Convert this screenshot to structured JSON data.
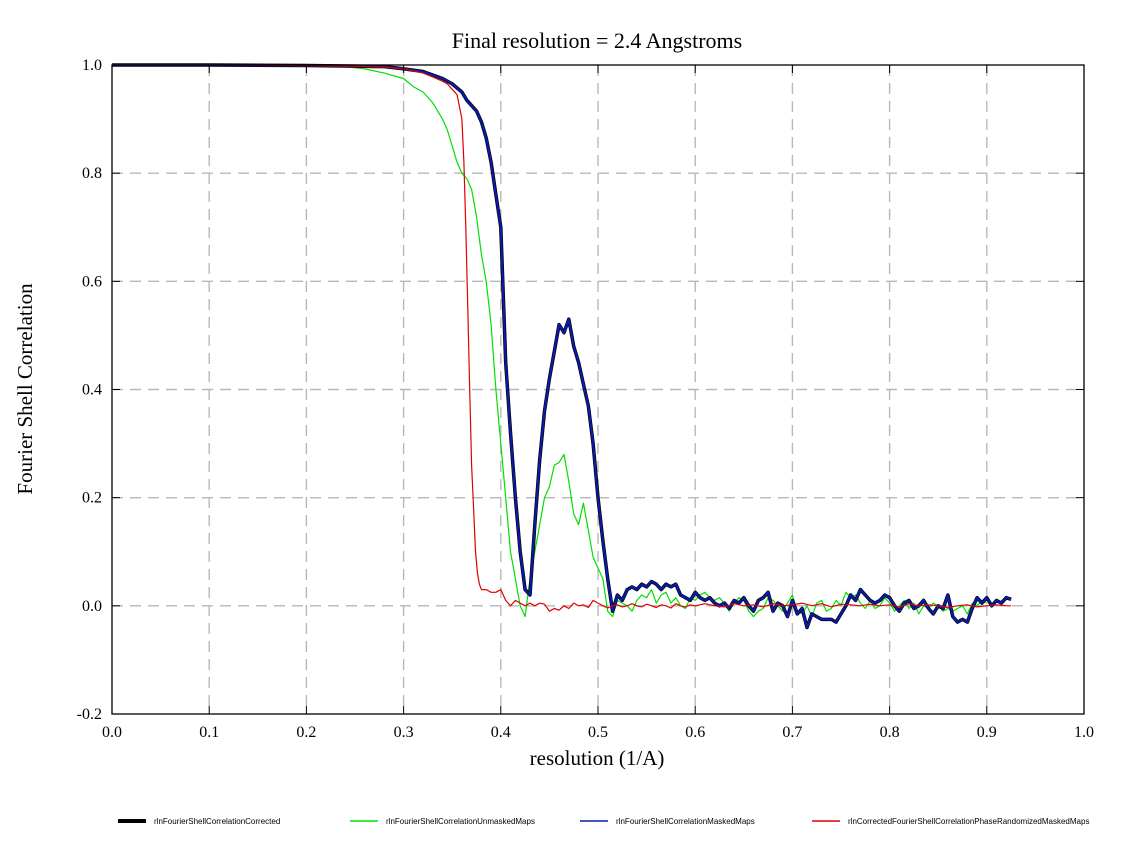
{
  "chart_data": {
    "type": "line",
    "title": "Final resolution =   2.4 Angstroms",
    "xlabel": "resolution (1/A)",
    "ylabel": "Fourier Shell Correlation",
    "xlim": [
      0.0,
      1.0
    ],
    "ylim": [
      -0.2,
      1.0
    ],
    "x_ticks": [
      "0.0",
      "0.1",
      "0.2",
      "0.3",
      "0.4",
      "0.5",
      "0.6",
      "0.7",
      "0.8",
      "0.9",
      "1.0"
    ],
    "y_ticks": [
      "-0.2",
      "0.0",
      "0.2",
      "0.4",
      "0.6",
      "0.8",
      "1.0"
    ],
    "grid": true,
    "legend_position": "bottom",
    "series": [
      {
        "name": "rlnFourierShellCorrelationCorrected",
        "color": "#000000",
        "x": [
          0.0,
          0.1,
          0.2,
          0.25,
          0.28,
          0.3,
          0.32,
          0.34,
          0.35,
          0.36,
          0.365,
          0.37,
          0.375,
          0.38,
          0.385,
          0.39,
          0.395,
          0.4,
          0.405,
          0.41,
          0.415,
          0.42,
          0.425,
          0.43,
          0.435,
          0.44,
          0.445,
          0.45,
          0.455,
          0.46,
          0.465,
          0.47,
          0.475,
          0.48,
          0.485,
          0.49,
          0.495,
          0.5,
          0.505,
          0.51,
          0.515,
          0.52,
          0.525,
          0.53,
          0.535,
          0.54,
          0.545,
          0.55,
          0.555,
          0.56,
          0.565,
          0.57,
          0.575,
          0.58,
          0.585,
          0.59,
          0.595,
          0.6,
          0.605,
          0.61,
          0.615,
          0.62,
          0.625,
          0.63,
          0.635,
          0.64,
          0.645,
          0.65,
          0.655,
          0.66,
          0.665,
          0.67,
          0.675,
          0.68,
          0.685,
          0.69,
          0.695,
          0.7,
          0.705,
          0.71,
          0.715,
          0.72,
          0.725,
          0.73,
          0.735,
          0.74,
          0.745,
          0.75,
          0.755,
          0.76,
          0.765,
          0.77,
          0.775,
          0.78,
          0.785,
          0.79,
          0.795,
          0.8,
          0.805,
          0.81,
          0.815,
          0.82,
          0.825,
          0.83,
          0.835,
          0.84,
          0.845,
          0.85,
          0.855,
          0.86,
          0.865,
          0.87,
          0.875,
          0.88,
          0.885,
          0.89,
          0.895,
          0.9,
          0.905,
          0.91,
          0.915,
          0.92,
          0.925
        ],
        "values": [
          1.0,
          1.0,
          0.999,
          0.998,
          0.997,
          0.993,
          0.988,
          0.975,
          0.965,
          0.95,
          0.935,
          0.925,
          0.915,
          0.895,
          0.865,
          0.82,
          0.76,
          0.7,
          0.45,
          0.32,
          0.2,
          0.1,
          0.03,
          0.02,
          0.15,
          0.27,
          0.36,
          0.42,
          0.47,
          0.52,
          0.505,
          0.53,
          0.48,
          0.45,
          0.41,
          0.37,
          0.3,
          0.2,
          0.12,
          0.05,
          -0.01,
          0.02,
          0.01,
          0.03,
          0.035,
          0.03,
          0.04,
          0.035,
          0.045,
          0.04,
          0.03,
          0.04,
          0.035,
          0.04,
          0.02,
          0.015,
          0.01,
          0.025,
          0.015,
          0.01,
          0.015,
          0.005,
          0.0,
          0.005,
          -0.005,
          0.01,
          0.005,
          0.015,
          0.0,
          -0.01,
          0.01,
          0.015,
          0.025,
          -0.01,
          0.005,
          0.0,
          -0.02,
          0.01,
          -0.015,
          -0.005,
          -0.04,
          -0.015,
          -0.02,
          -0.025,
          -0.025,
          -0.025,
          -0.03,
          -0.015,
          0.0,
          0.02,
          0.01,
          0.03,
          0.02,
          0.01,
          0.005,
          0.01,
          0.02,
          0.015,
          0.0,
          -0.01,
          0.005,
          0.01,
          -0.005,
          0.0,
          0.01,
          -0.005,
          -0.015,
          0.0,
          -0.005,
          0.02,
          -0.02,
          -0.03,
          -0.025,
          -0.03,
          -0.005,
          0.015,
          0.005,
          0.015,
          0.0,
          0.01,
          0.005,
          0.015,
          0.012
        ],
        "line_width": 3.5
      },
      {
        "name": "rlnFourierShellCorrelationUnmaskedMaps",
        "color": "#00e000",
        "x": [
          0.0,
          0.1,
          0.2,
          0.24,
          0.26,
          0.28,
          0.3,
          0.31,
          0.32,
          0.33,
          0.34,
          0.345,
          0.35,
          0.355,
          0.36,
          0.365,
          0.37,
          0.375,
          0.38,
          0.385,
          0.39,
          0.395,
          0.4,
          0.405,
          0.41,
          0.415,
          0.42,
          0.425,
          0.43,
          0.435,
          0.44,
          0.445,
          0.45,
          0.455,
          0.46,
          0.465,
          0.47,
          0.475,
          0.48,
          0.485,
          0.49,
          0.495,
          0.5,
          0.505,
          0.51,
          0.515,
          0.52,
          0.525,
          0.53,
          0.535,
          0.54,
          0.545,
          0.55,
          0.555,
          0.56,
          0.565,
          0.57,
          0.575,
          0.58,
          0.585,
          0.59,
          0.595,
          0.6,
          0.605,
          0.61,
          0.615,
          0.62,
          0.625,
          0.63,
          0.635,
          0.64,
          0.645,
          0.65,
          0.655,
          0.66,
          0.665,
          0.67,
          0.675,
          0.68,
          0.685,
          0.69,
          0.695,
          0.7,
          0.705,
          0.71,
          0.715,
          0.72,
          0.725,
          0.73,
          0.735,
          0.74,
          0.745,
          0.75,
          0.755,
          0.76,
          0.765,
          0.77,
          0.775,
          0.78,
          0.785,
          0.79,
          0.795,
          0.8,
          0.805,
          0.81,
          0.815,
          0.82,
          0.825,
          0.83,
          0.835,
          0.84,
          0.845,
          0.85,
          0.855,
          0.86,
          0.865,
          0.87,
          0.875,
          0.88,
          0.885,
          0.89,
          0.895,
          0.9
        ],
        "values": [
          1.0,
          1.0,
          0.999,
          0.997,
          0.993,
          0.985,
          0.975,
          0.96,
          0.95,
          0.93,
          0.9,
          0.88,
          0.85,
          0.82,
          0.8,
          0.79,
          0.77,
          0.72,
          0.65,
          0.6,
          0.52,
          0.4,
          0.3,
          0.2,
          0.1,
          0.05,
          0.0,
          -0.02,
          0.05,
          0.1,
          0.15,
          0.2,
          0.22,
          0.26,
          0.265,
          0.28,
          0.23,
          0.17,
          0.15,
          0.19,
          0.14,
          0.09,
          0.07,
          0.05,
          -0.01,
          -0.02,
          0.01,
          0.005,
          0.0,
          -0.01,
          0.01,
          0.02,
          0.015,
          0.03,
          0.005,
          0.02,
          0.025,
          0.005,
          0.015,
          0.0,
          -0.005,
          0.015,
          0.01,
          0.02,
          0.025,
          0.015,
          0.01,
          0.015,
          0.005,
          -0.01,
          0.005,
          0.015,
          0.01,
          -0.01,
          -0.02,
          -0.01,
          -0.005,
          0.015,
          0.01,
          0.0,
          -0.01,
          0.005,
          0.02,
          -0.01,
          -0.015,
          0.0,
          -0.02,
          0.005,
          0.01,
          -0.01,
          -0.005,
          0.01,
          0.0,
          0.025,
          0.015,
          0.02,
          0.005,
          -0.005,
          0.01,
          -0.005,
          0.0,
          0.015,
          0.005,
          -0.01,
          0.0,
          0.01,
          -0.005,
          0.005,
          -0.015,
          0.0,
          -0.005,
          0.005,
          0.0,
          -0.01,
          -0.005,
          -0.01,
          -0.005,
          0.0,
          -0.015,
          0.005,
          0.0,
          0.01,
          0.005
        ],
        "line_width": 1.2
      },
      {
        "name": "rlnFourierShellCorrelationMaskedMaps",
        "color": "#0a1aa8",
        "x": [
          0.0,
          0.1,
          0.2,
          0.25,
          0.28,
          0.3,
          0.32,
          0.34,
          0.35,
          0.36,
          0.365,
          0.37,
          0.375,
          0.38,
          0.385,
          0.39,
          0.395,
          0.4,
          0.405,
          0.41,
          0.415,
          0.42,
          0.425,
          0.43,
          0.435,
          0.44,
          0.445,
          0.45,
          0.455,
          0.46,
          0.465,
          0.47,
          0.475,
          0.48,
          0.485,
          0.49,
          0.495,
          0.5,
          0.505,
          0.51,
          0.515,
          0.52,
          0.525,
          0.53,
          0.535,
          0.54,
          0.545,
          0.55,
          0.555,
          0.56,
          0.565,
          0.57,
          0.575,
          0.58,
          0.585,
          0.59,
          0.595,
          0.6,
          0.605,
          0.61,
          0.615,
          0.62,
          0.625,
          0.63,
          0.635,
          0.64,
          0.645,
          0.65,
          0.655,
          0.66,
          0.665,
          0.67,
          0.675,
          0.68,
          0.685,
          0.69,
          0.695,
          0.7,
          0.705,
          0.71,
          0.715,
          0.72,
          0.725,
          0.73,
          0.735,
          0.74,
          0.745,
          0.75,
          0.755,
          0.76,
          0.765,
          0.77,
          0.775,
          0.78,
          0.785,
          0.79,
          0.795,
          0.8,
          0.805,
          0.81,
          0.815,
          0.82,
          0.825,
          0.83,
          0.835,
          0.84,
          0.845,
          0.85,
          0.855,
          0.86,
          0.865,
          0.87,
          0.875,
          0.88,
          0.885,
          0.89,
          0.895,
          0.9,
          0.905,
          0.91,
          0.915,
          0.92,
          0.925
        ],
        "values": [
          1.0,
          1.0,
          0.999,
          0.998,
          0.997,
          0.993,
          0.988,
          0.975,
          0.965,
          0.95,
          0.935,
          0.925,
          0.915,
          0.895,
          0.865,
          0.82,
          0.76,
          0.7,
          0.45,
          0.32,
          0.2,
          0.1,
          0.03,
          0.02,
          0.15,
          0.27,
          0.36,
          0.42,
          0.47,
          0.52,
          0.505,
          0.53,
          0.48,
          0.45,
          0.41,
          0.37,
          0.3,
          0.2,
          0.12,
          0.05,
          -0.01,
          0.02,
          0.01,
          0.03,
          0.035,
          0.03,
          0.04,
          0.035,
          0.045,
          0.04,
          0.03,
          0.04,
          0.035,
          0.04,
          0.02,
          0.015,
          0.01,
          0.025,
          0.015,
          0.01,
          0.015,
          0.005,
          0.0,
          0.005,
          -0.005,
          0.01,
          0.005,
          0.015,
          0.0,
          -0.01,
          0.01,
          0.015,
          0.025,
          -0.01,
          0.005,
          0.0,
          -0.02,
          0.01,
          -0.015,
          -0.005,
          -0.04,
          -0.015,
          -0.02,
          -0.025,
          -0.025,
          -0.025,
          -0.03,
          -0.015,
          0.0,
          0.02,
          0.01,
          0.03,
          0.02,
          0.01,
          0.005,
          0.01,
          0.02,
          0.015,
          0.0,
          -0.01,
          0.005,
          0.01,
          -0.005,
          0.0,
          0.01,
          -0.005,
          -0.015,
          0.0,
          -0.005,
          0.02,
          -0.02,
          -0.03,
          -0.025,
          -0.03,
          -0.005,
          0.015,
          0.005,
          0.015,
          0.0,
          0.01,
          0.005,
          0.015,
          0.012
        ],
        "line_width": 2.2
      },
      {
        "name": "rlnCorrectedFourierShellCorrelationPhaseRandomizedMaskedMaps",
        "color": "#e00000",
        "x": [
          0.0,
          0.1,
          0.2,
          0.25,
          0.28,
          0.3,
          0.32,
          0.33,
          0.34,
          0.345,
          0.35,
          0.355,
          0.36,
          0.362,
          0.364,
          0.366,
          0.368,
          0.37,
          0.372,
          0.374,
          0.376,
          0.378,
          0.38,
          0.385,
          0.39,
          0.395,
          0.4,
          0.405,
          0.41,
          0.415,
          0.42,
          0.425,
          0.43,
          0.435,
          0.44,
          0.445,
          0.45,
          0.455,
          0.46,
          0.465,
          0.47,
          0.475,
          0.48,
          0.485,
          0.49,
          0.495,
          0.5,
          0.505,
          0.51,
          0.515,
          0.52,
          0.525,
          0.53,
          0.535,
          0.54,
          0.545,
          0.55,
          0.555,
          0.56,
          0.565,
          0.57,
          0.575,
          0.58,
          0.585,
          0.59,
          0.595,
          0.6,
          0.61,
          0.62,
          0.63,
          0.64,
          0.65,
          0.66,
          0.67,
          0.68,
          0.69,
          0.7,
          0.71,
          0.72,
          0.73,
          0.74,
          0.75,
          0.76,
          0.77,
          0.78,
          0.79,
          0.8,
          0.81,
          0.82,
          0.83,
          0.84,
          0.85,
          0.86,
          0.87,
          0.88,
          0.89,
          0.9,
          0.91,
          0.92,
          0.925
        ],
        "values": [
          1.0,
          1.0,
          0.999,
          0.998,
          0.996,
          0.993,
          0.985,
          0.978,
          0.97,
          0.965,
          0.955,
          0.945,
          0.9,
          0.82,
          0.7,
          0.55,
          0.4,
          0.26,
          0.18,
          0.1,
          0.06,
          0.04,
          0.03,
          0.03,
          0.025,
          0.025,
          0.03,
          0.01,
          0.0,
          0.01,
          0.005,
          0.0,
          0.005,
          0.0,
          0.005,
          0.003,
          -0.01,
          -0.005,
          -0.008,
          0.0,
          -0.005,
          0.005,
          0.0,
          0.002,
          -0.003,
          0.01,
          0.005,
          0.0,
          -0.004,
          0.0,
          0.002,
          -0.002,
          0.0,
          0.004,
          0.0,
          -0.002,
          0.003,
          0.0,
          -0.003,
          0.002,
          0.0,
          -0.004,
          0.004,
          0.0,
          -0.002,
          0.002,
          0.0,
          0.004,
          0.0,
          -0.002,
          0.004,
          0.0,
          0.002,
          -0.002,
          0.004,
          0.0,
          0.002,
          0.005,
          0.0,
          0.004,
          -0.002,
          0.003,
          0.002,
          0.0,
          0.003,
          0.0,
          0.002,
          -0.002,
          0.004,
          0.0,
          0.002,
          0.0,
          -0.003,
          0.0,
          0.002,
          -0.002,
          0.0,
          0.002,
          0.0,
          0.0
        ],
        "line_width": 1.2
      }
    ]
  }
}
